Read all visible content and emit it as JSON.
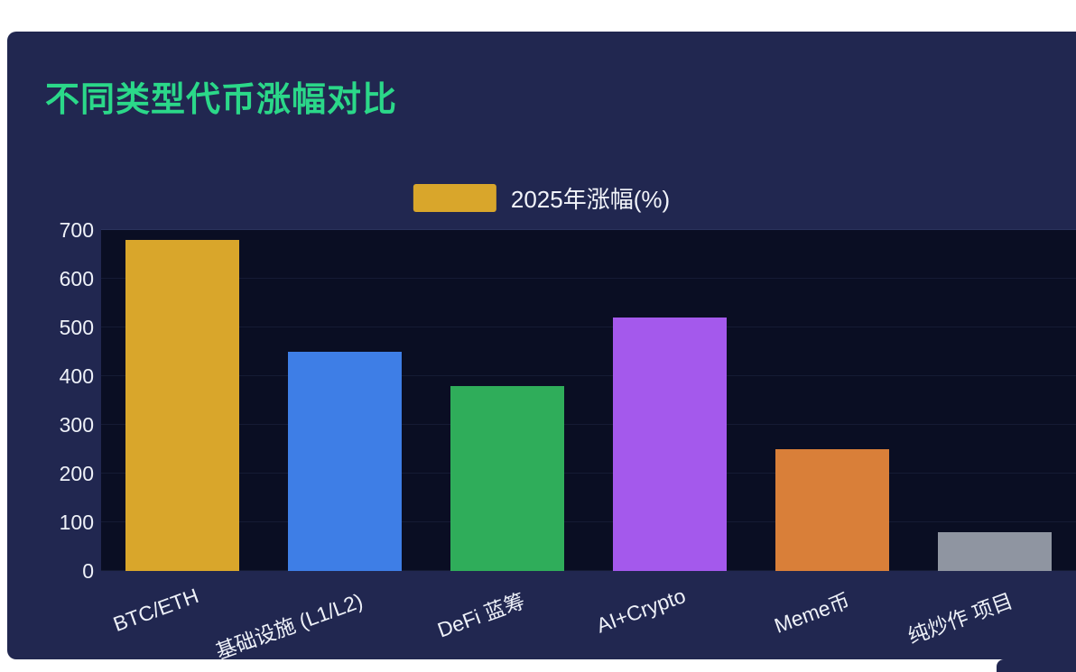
{
  "page": {
    "title": "不同类型代币涨幅对比"
  },
  "legend": {
    "label": "2025年涨幅(%)",
    "swatch_color": "#d9a62b"
  },
  "colors": {
    "title": "#2bd889",
    "card_bg": "#212750",
    "plot_bg": "#0a0e23",
    "axis_text": "#eef1f8"
  },
  "chart_data": {
    "type": "bar",
    "title": "不同类型代币涨幅对比",
    "series_name": "2025年涨幅(%)",
    "categories": [
      "BTC/ETH",
      "基础设施 (L1/L2)",
      "DeFi 蓝筹",
      "AI+Crypto",
      "Meme币",
      "纯炒作 项目"
    ],
    "values": [
      680,
      450,
      380,
      520,
      250,
      80
    ],
    "bar_colors": [
      "#d9a62b",
      "#3e7ee6",
      "#2fad5a",
      "#a459ec",
      "#d97f39",
      "#8f95a1"
    ],
    "xlabel": "",
    "ylabel": "",
    "ylim": [
      0,
      700
    ],
    "yticks": [
      0,
      100,
      200,
      300,
      400,
      500,
      600,
      700
    ],
    "grid": true,
    "legend_position": "top"
  }
}
